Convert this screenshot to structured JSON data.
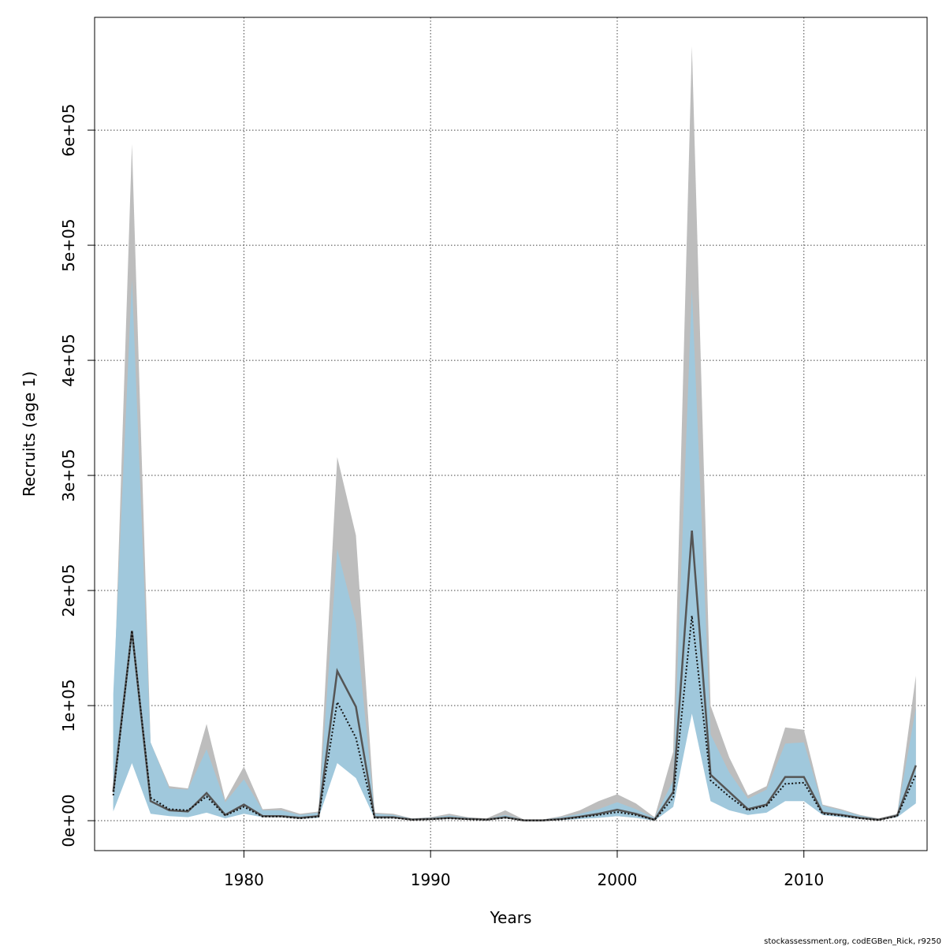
{
  "chart_data": {
    "type": "area",
    "xlabel": "Years",
    "ylabel": "Recruits (age 1)",
    "xlim": [
      1972,
      2016.6
    ],
    "ylim": [
      -26000,
      698000
    ],
    "grid": true,
    "x_ticks": [
      1980,
      1990,
      2000,
      2010
    ],
    "x_tick_labels": [
      "1980",
      "1990",
      "2000",
      "2010"
    ],
    "y_ticks": [
      0,
      100000,
      200000,
      300000,
      400000,
      500000,
      600000
    ],
    "y_tick_labels": [
      "0e+00",
      "1e+05",
      "2e+05",
      "3e+05",
      "4e+05",
      "5e+05",
      "6e+05"
    ],
    "years": [
      1973,
      1974,
      1975,
      1976,
      1977,
      1978,
      1979,
      1980,
      1981,
      1982,
      1983,
      1984,
      1985,
      1986,
      1987,
      1988,
      1989,
      1990,
      1991,
      1992,
      1993,
      1994,
      1995,
      1996,
      1997,
      1998,
      1999,
      2000,
      2001,
      2002,
      2003,
      2004,
      2005,
      2006,
      2007,
      2008,
      2009,
      2010,
      2011,
      2012,
      2013,
      2014,
      2015,
      2016
    ],
    "series": [
      {
        "role": "gray-band",
        "color": "#bdbdbd",
        "lower": [
          10000,
          55000,
          8000,
          5000,
          5000,
          9000,
          3000,
          7000,
          3000,
          3000,
          2000,
          3000,
          55000,
          40000,
          2000,
          2000,
          500,
          1000,
          1500,
          1000,
          500,
          2000,
          0,
          0,
          500,
          1500,
          2500,
          4000,
          2500,
          0,
          12000,
          95000,
          18000,
          10000,
          5000,
          8000,
          18000,
          18000,
          5000,
          3000,
          1500,
          500,
          3000,
          17000
        ],
        "upper": [
          90000,
          588000,
          68000,
          30000,
          28000,
          84000,
          18000,
          47000,
          10000,
          11000,
          6000,
          8000,
          316000,
          248000,
          7000,
          6000,
          2000,
          3000,
          6000,
          3000,
          2000,
          9000,
          1000,
          1000,
          4000,
          9000,
          17000,
          23000,
          15000,
          3000,
          60000,
          673000,
          100000,
          55000,
          22000,
          30000,
          81000,
          79000,
          14000,
          10000,
          5000,
          2000,
          6000,
          126000
        ]
      },
      {
        "role": "blue-band",
        "color": "#a0c8dc",
        "lower": [
          8000,
          50000,
          6000,
          4000,
          3000,
          7000,
          2000,
          6000,
          3000,
          3000,
          1500,
          2500,
          50000,
          37000,
          2000,
          2000,
          500,
          1000,
          1500,
          1000,
          500,
          2000,
          0,
          0,
          500,
          1500,
          2500,
          4000,
          2500,
          0,
          12000,
          93000,
          17000,
          9000,
          5000,
          7000,
          17000,
          17000,
          5000,
          3000,
          1500,
          500,
          3000,
          15000
        ],
        "upper": [
          110000,
          470000,
          68000,
          28000,
          27000,
          62000,
          16000,
          36000,
          9000,
          9000,
          5000,
          7000,
          236000,
          172000,
          6000,
          5000,
          1800,
          2500,
          4500,
          2500,
          1500,
          5000,
          800,
          900,
          3000,
          6000,
          10000,
          16000,
          10000,
          2500,
          35000,
          462000,
          75000,
          42000,
          19000,
          27000,
          67000,
          68000,
          13000,
          9000,
          4500,
          1500,
          5500,
          98000
        ]
      },
      {
        "role": "base-line",
        "color": "#555555",
        "values": [
          25000,
          165000,
          17000,
          9000,
          8000,
          24000,
          5000,
          14000,
          4000,
          4000,
          2500,
          4000,
          130000,
          99000,
          3000,
          3000,
          1000,
          1500,
          2500,
          1500,
          1000,
          3000,
          300,
          300,
          1500,
          3500,
          6000,
          9500,
          6000,
          800,
          25000,
          252000,
          40000,
          25000,
          10000,
          14000,
          38000,
          38000,
          7000,
          5000,
          2500,
          800,
          4500,
          48000
        ]
      },
      {
        "role": "dotted-line",
        "color": "#111111",
        "values": [
          22000,
          165000,
          20000,
          10000,
          9000,
          21000,
          4500,
          12000,
          3500,
          3500,
          2000,
          3500,
          103000,
          72000,
          2500,
          2500,
          800,
          1300,
          2000,
          1300,
          800,
          2500,
          200,
          200,
          1200,
          3000,
          5000,
          7500,
          5000,
          600,
          20000,
          178000,
          35000,
          21000,
          9000,
          13000,
          32000,
          33000,
          6000,
          4500,
          2000,
          600,
          4000,
          40000
        ]
      }
    ],
    "footer": "stockassessment.org, codEGBen_Rick, r9250"
  }
}
